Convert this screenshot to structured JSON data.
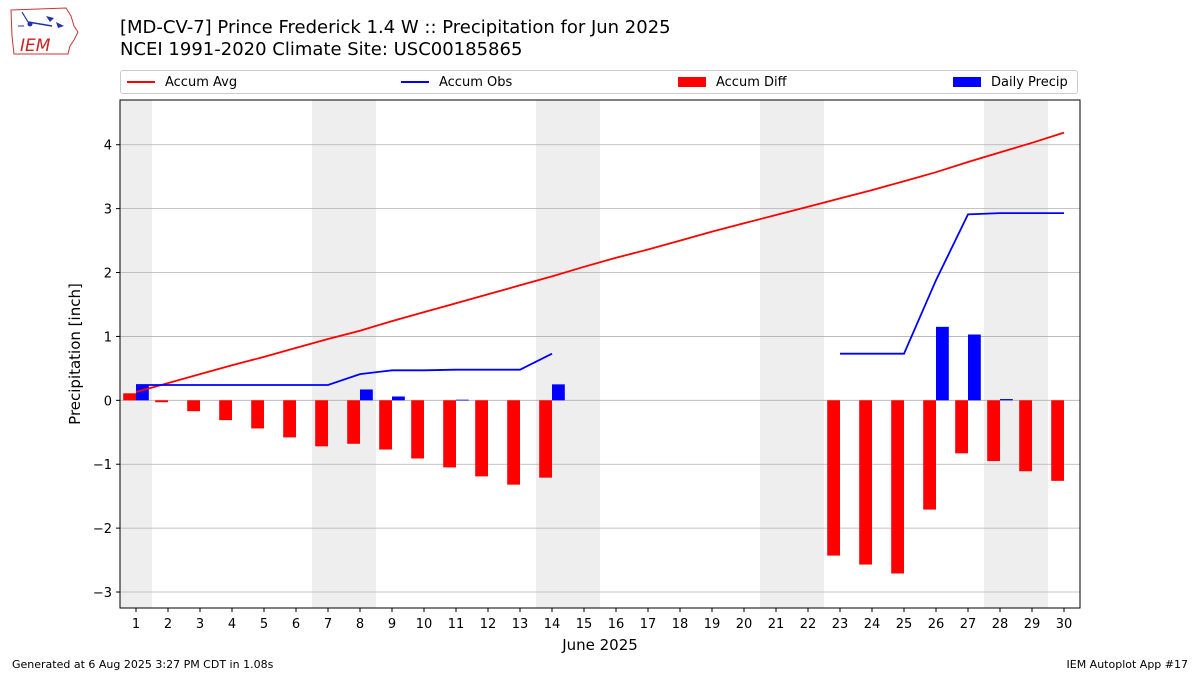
{
  "header": {
    "title_line1": "[MD-CV-7] Prince Frederick 1.4 W :: Precipitation for Jun 2025",
    "title_line2": "NCEI 1991-2020 Climate Site: USC00185865"
  },
  "logo": {
    "text": "IEM",
    "icon": "iem-iowa-logo-icon"
  },
  "footer": {
    "left": "Generated at 6 Aug 2025 3:27 PM CDT in 1.08s",
    "right": "IEM Autoplot App #17"
  },
  "chart_data": {
    "type": "bar",
    "xlabel": "June 2025",
    "ylabel": "Precipitation [inch]",
    "xlim": [
      0.5,
      30.5
    ],
    "ylim": [
      -3.25,
      4.7
    ],
    "yticks": [
      -3,
      -2,
      -1,
      0,
      1,
      2,
      3,
      4
    ],
    "ytick_labels": [
      "−3",
      "−2",
      "−1",
      "0",
      "1",
      "2",
      "3",
      "4"
    ],
    "days": [
      1,
      2,
      3,
      4,
      5,
      6,
      7,
      8,
      9,
      10,
      11,
      12,
      13,
      14,
      15,
      16,
      17,
      18,
      19,
      20,
      21,
      22,
      23,
      24,
      25,
      26,
      27,
      28,
      29,
      30
    ],
    "grid": "horizontal",
    "legend_position": "top",
    "weekend_spans": [
      [
        0.5,
        1.5
      ],
      [
        6.5,
        8.5
      ],
      [
        13.5,
        15.5
      ],
      [
        20.5,
        22.5
      ],
      [
        27.5,
        29.5
      ]
    ],
    "colors": {
      "accum_avg": "#ff0000",
      "accum_obs": "#0000ff",
      "accum_diff": "#ff0000",
      "daily_precip": "#0000ff",
      "weekend": "#eeeeee",
      "grid": "#b0b0b0"
    },
    "series": [
      {
        "name": "Accum Avg",
        "kind": "line",
        "values": [
          0.13,
          0.27,
          0.41,
          0.55,
          0.68,
          0.82,
          0.96,
          1.09,
          1.24,
          1.38,
          1.52,
          1.66,
          1.8,
          1.94,
          2.09,
          2.23,
          2.36,
          2.5,
          2.64,
          2.77,
          2.9,
          3.03,
          3.16,
          3.29,
          3.43,
          3.57,
          3.73,
          3.88,
          4.03,
          4.19
        ]
      },
      {
        "name": "Accum Obs",
        "kind": "line",
        "values": [
          0.24,
          0.24,
          0.24,
          0.24,
          0.24,
          0.24,
          0.24,
          0.41,
          0.47,
          0.47,
          0.48,
          0.48,
          0.48,
          0.73,
          null,
          null,
          null,
          null,
          null,
          null,
          null,
          null,
          0.73,
          0.73,
          0.73,
          1.88,
          2.91,
          2.93,
          2.93,
          2.93
        ]
      },
      {
        "name": "Accum Diff",
        "kind": "bar",
        "values": [
          0.11,
          -0.03,
          -0.17,
          -0.31,
          -0.44,
          -0.58,
          -0.72,
          -0.68,
          -0.77,
          -0.91,
          -1.05,
          -1.19,
          -1.32,
          -1.21,
          null,
          null,
          null,
          null,
          null,
          null,
          null,
          null,
          -2.43,
          -2.57,
          -2.71,
          -1.71,
          -0.83,
          -0.95,
          -1.11,
          -1.26
        ]
      },
      {
        "name": "Daily Precip",
        "kind": "bar",
        "values": [
          0.24,
          0,
          0,
          0,
          0,
          0,
          0,
          0.17,
          0.06,
          0,
          0.01,
          0,
          0,
          0.25,
          null,
          null,
          null,
          null,
          null,
          null,
          null,
          null,
          0,
          0,
          0,
          1.15,
          1.03,
          0.02,
          0,
          0
        ]
      }
    ]
  }
}
